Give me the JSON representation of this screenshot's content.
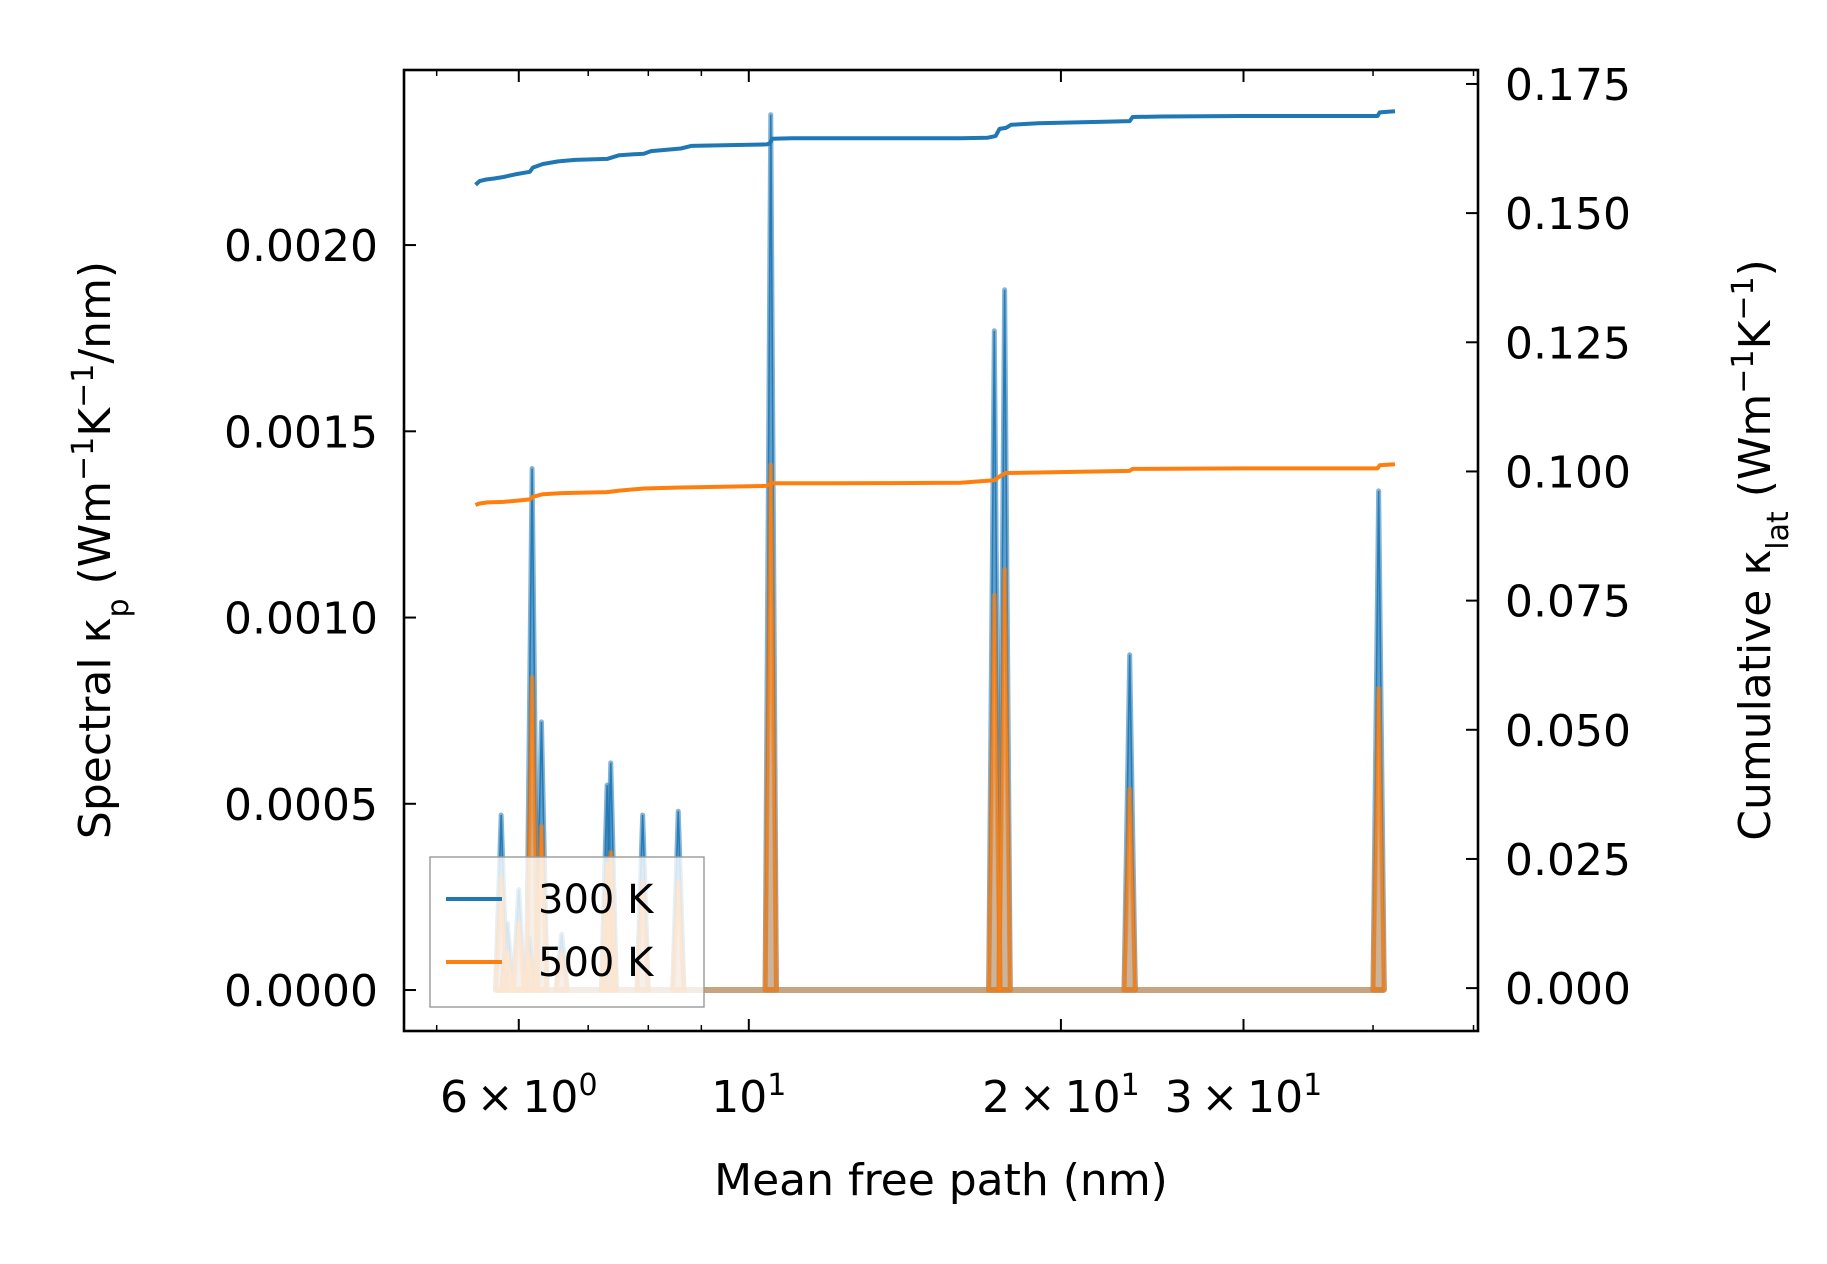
{
  "chart_data": {
    "type": "line",
    "xlabel": "Mean free path (nm)",
    "ylabel_left": {
      "main": "Spectral κ",
      "sub": "p",
      "unit_pre": " (Wm",
      "sup1": "−1",
      "mid": "K",
      "sup2": "−1",
      "unit_post": "/nm)"
    },
    "ylabel_right": {
      "main": "Cumulative κ",
      "sub": "lat",
      "unit_pre": " (Wm",
      "sup1": "−1",
      "mid": "K",
      "sup2": "−1",
      "unit_post": ")"
    },
    "xscale": "log",
    "xlim": [
      4.65,
      50.5
    ],
    "ylim_left": [
      -0.00011,
      0.00247
    ],
    "ylim_right": [
      -0.0083,
      0.1777
    ],
    "x_ticks": [
      {
        "value": 6,
        "mant": "6",
        "exp": "0"
      },
      {
        "value": 10,
        "mant": "",
        "exp": "1"
      },
      {
        "value": 20,
        "mant": "2",
        "exp": "1"
      },
      {
        "value": 30,
        "mant": "3",
        "exp": "1"
      }
    ],
    "x_tick_base": "10",
    "x_tick_times": "×",
    "y_left_ticks": [
      0.0,
      0.0005,
      0.001,
      0.0015,
      0.002
    ],
    "y_left_labels": [
      "0.0000",
      "0.0005",
      "0.0010",
      "0.0015",
      "0.0020"
    ],
    "y_right_ticks": [
      0.0,
      0.025,
      0.05,
      0.075,
      0.1,
      0.125,
      0.15,
      0.175
    ],
    "y_right_labels": [
      "0.000",
      "0.025",
      "0.050",
      "0.075",
      "0.100",
      "0.125",
      "0.150",
      "0.175"
    ],
    "legend": {
      "position": "lower-left",
      "entries": [
        "300 K",
        "500 K"
      ]
    },
    "colors": {
      "c300": "#1f77b4",
      "c500": "#ff7f0e"
    },
    "spectral": {
      "peak_halfwidth_log10": 0.0055,
      "series": [
        {
          "name": "300 K",
          "peaks": [
            [
              5.77,
              0.00047
            ],
            [
              5.85,
              0.00018
            ],
            [
              6.0,
              0.00027
            ],
            [
              6.14,
              0.00014
            ],
            [
              6.18,
              0.0014
            ],
            [
              6.31,
              0.00072
            ],
            [
              6.6,
              0.00015
            ],
            [
              7.3,
              0.00055
            ],
            [
              7.36,
              0.00061
            ],
            [
              7.9,
              0.00047
            ],
            [
              8.55,
              0.00048
            ],
            [
              10.5,
              0.00235
            ],
            [
              17.25,
              0.00177
            ],
            [
              17.65,
              0.00188
            ],
            [
              23.3,
              0.0009
            ],
            [
              40.5,
              0.00134
            ]
          ]
        },
        {
          "name": "500 K",
          "peaks": [
            [
              5.77,
              0.0003
            ],
            [
              5.85,
              0.0001
            ],
            [
              6.0,
              0.00018
            ],
            [
              6.14,
              9e-05
            ],
            [
              6.18,
              0.00084
            ],
            [
              6.31,
              0.00044
            ],
            [
              6.6,
              0.0001
            ],
            [
              7.3,
              0.00034
            ],
            [
              7.36,
              0.00037
            ],
            [
              7.9,
              0.00029
            ],
            [
              8.55,
              0.00029
            ],
            [
              10.5,
              0.00141
            ],
            [
              17.25,
              0.00106
            ],
            [
              17.65,
              0.00113
            ],
            [
              23.3,
              0.00054
            ],
            [
              40.5,
              0.00081
            ]
          ]
        }
      ]
    },
    "cumulative": [
      {
        "name": "300 K",
        "x": [
          5.45,
          5.5,
          5.58,
          5.68,
          5.8,
          5.95,
          6.15,
          6.19,
          6.33,
          6.55,
          6.8,
          7.3,
          7.5,
          7.92,
          8.05,
          8.6,
          8.8,
          10.4,
          10.48,
          10.53,
          11.0,
          12.0,
          14.0,
          16.0,
          17.0,
          17.3,
          17.45,
          17.7,
          17.9,
          19.0,
          22.0,
          23.3,
          23.45,
          25.0,
          30.0,
          35.0,
          40.4,
          40.6,
          42.0
        ],
        "y": [
          0.1555,
          0.1562,
          0.1565,
          0.1567,
          0.157,
          0.1575,
          0.158,
          0.1588,
          0.1595,
          0.16,
          0.1603,
          0.1605,
          0.1612,
          0.1615,
          0.162,
          0.1625,
          0.163,
          0.1633,
          0.1635,
          0.1644,
          0.1645,
          0.1645,
          0.1645,
          0.1645,
          0.1646,
          0.1649,
          0.1663,
          0.1665,
          0.1671,
          0.1674,
          0.1677,
          0.1678,
          0.1686,
          0.1687,
          0.1688,
          0.1688,
          0.1688,
          0.1695,
          0.1697
        ]
      },
      {
        "name": "500 K",
        "x": [
          5.45,
          5.5,
          5.6,
          5.8,
          5.95,
          6.15,
          6.19,
          6.33,
          6.6,
          7.3,
          7.5,
          7.92,
          8.6,
          10.4,
          10.5,
          12.0,
          16.0,
          17.25,
          17.5,
          17.7,
          19.0,
          23.3,
          23.45,
          30.0,
          40.4,
          40.6,
          42.0
        ],
        "y": [
          0.0935,
          0.0938,
          0.094,
          0.0941,
          0.0943,
          0.0946,
          0.0951,
          0.0956,
          0.0958,
          0.096,
          0.0963,
          0.0967,
          0.0969,
          0.0972,
          0.0977,
          0.0977,
          0.0978,
          0.0983,
          0.0992,
          0.0997,
          0.0998,
          0.1001,
          0.1005,
          0.1006,
          0.1006,
          0.1012,
          0.1014
        ]
      }
    ]
  }
}
